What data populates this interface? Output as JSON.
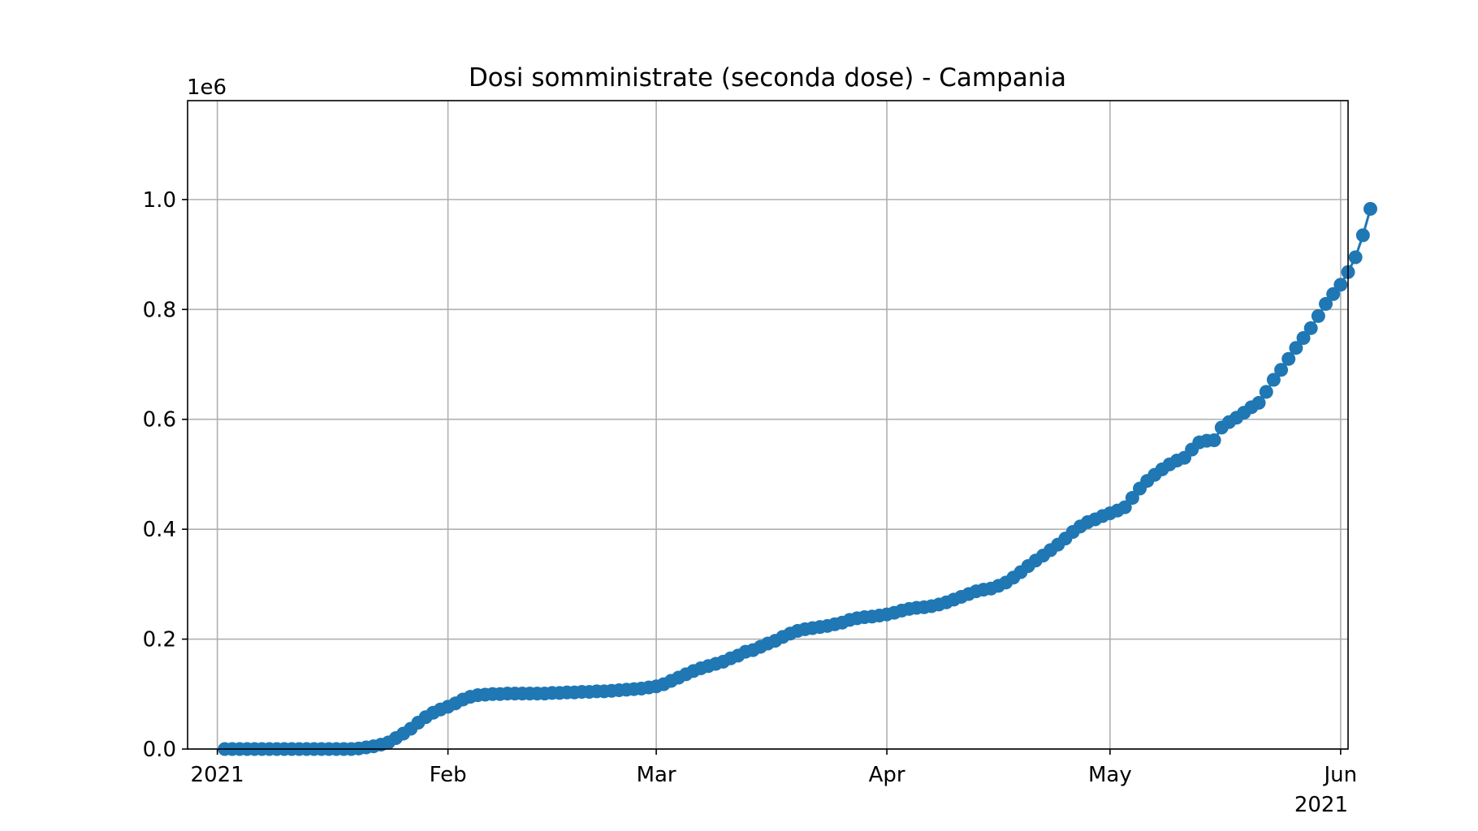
{
  "chart_data": {
    "type": "line",
    "title": "Dosi somministrate (seconda dose) - Campania",
    "xlabel": "",
    "ylabel": "",
    "y_offset_text": "1e6",
    "xlim": [
      "2020-12-28",
      "2021-06-02"
    ],
    "ylim": [
      0,
      1.18
    ],
    "x_ticks": [
      {
        "date": "2021-01-01",
        "label": "2021"
      },
      {
        "date": "2021-02-01",
        "label": "Feb"
      },
      {
        "date": "2021-03-01",
        "label": "Mar"
      },
      {
        "date": "2021-04-01",
        "label": "Apr"
      },
      {
        "date": "2021-05-01",
        "label": "May"
      },
      {
        "date": "2021-06-01",
        "label": "Jun"
      }
    ],
    "x_offset_text": "2021",
    "y_ticks": [
      {
        "value": 0.0,
        "label": "0.0"
      },
      {
        "value": 0.2,
        "label": "0.2"
      },
      {
        "value": 0.4,
        "label": "0.4"
      },
      {
        "value": 0.6,
        "label": "0.6"
      },
      {
        "value": 0.8,
        "label": "0.8"
      },
      {
        "value": 1.0,
        "label": "1.0"
      }
    ],
    "grid": true,
    "series": [
      {
        "color": "#1f77b4",
        "marker": "circle",
        "start_date": "2021-01-02",
        "values": [
          0,
          0,
          0,
          0,
          0,
          0,
          0,
          0,
          0,
          0,
          0,
          0,
          0,
          0,
          0,
          0,
          0,
          0,
          0.001,
          0.003,
          0.005,
          0.008,
          0.012,
          0.02,
          0.028,
          0.037,
          0.048,
          0.058,
          0.066,
          0.072,
          0.077,
          0.083,
          0.09,
          0.095,
          0.098,
          0.099,
          0.1,
          0.1,
          0.101,
          0.101,
          0.101,
          0.101,
          0.101,
          0.101,
          0.102,
          0.102,
          0.103,
          0.103,
          0.104,
          0.104,
          0.105,
          0.105,
          0.106,
          0.107,
          0.108,
          0.109,
          0.11,
          0.112,
          0.114,
          0.118,
          0.124,
          0.13,
          0.136,
          0.142,
          0.147,
          0.151,
          0.155,
          0.159,
          0.165,
          0.17,
          0.177,
          0.18,
          0.186,
          0.192,
          0.197,
          0.204,
          0.21,
          0.215,
          0.218,
          0.22,
          0.222,
          0.224,
          0.227,
          0.23,
          0.235,
          0.238,
          0.24,
          0.241,
          0.243,
          0.245,
          0.248,
          0.252,
          0.255,
          0.257,
          0.258,
          0.26,
          0.263,
          0.267,
          0.272,
          0.277,
          0.282,
          0.287,
          0.29,
          0.292,
          0.297,
          0.303,
          0.312,
          0.322,
          0.333,
          0.343,
          0.352,
          0.362,
          0.372,
          0.383,
          0.395,
          0.405,
          0.413,
          0.418,
          0.424,
          0.429,
          0.434,
          0.44,
          0.457,
          0.474,
          0.488,
          0.499,
          0.509,
          0.518,
          0.525,
          0.53,
          0.545,
          0.558,
          0.561,
          0.562,
          0.585,
          0.595,
          0.603,
          0.612,
          0.622,
          0.63,
          0.65,
          0.672,
          0.69,
          0.71,
          0.73,
          0.748,
          0.766,
          0.788,
          0.81,
          0.828,
          0.845,
          0.868,
          0.895,
          0.935,
          0.983
        ]
      }
    ]
  }
}
